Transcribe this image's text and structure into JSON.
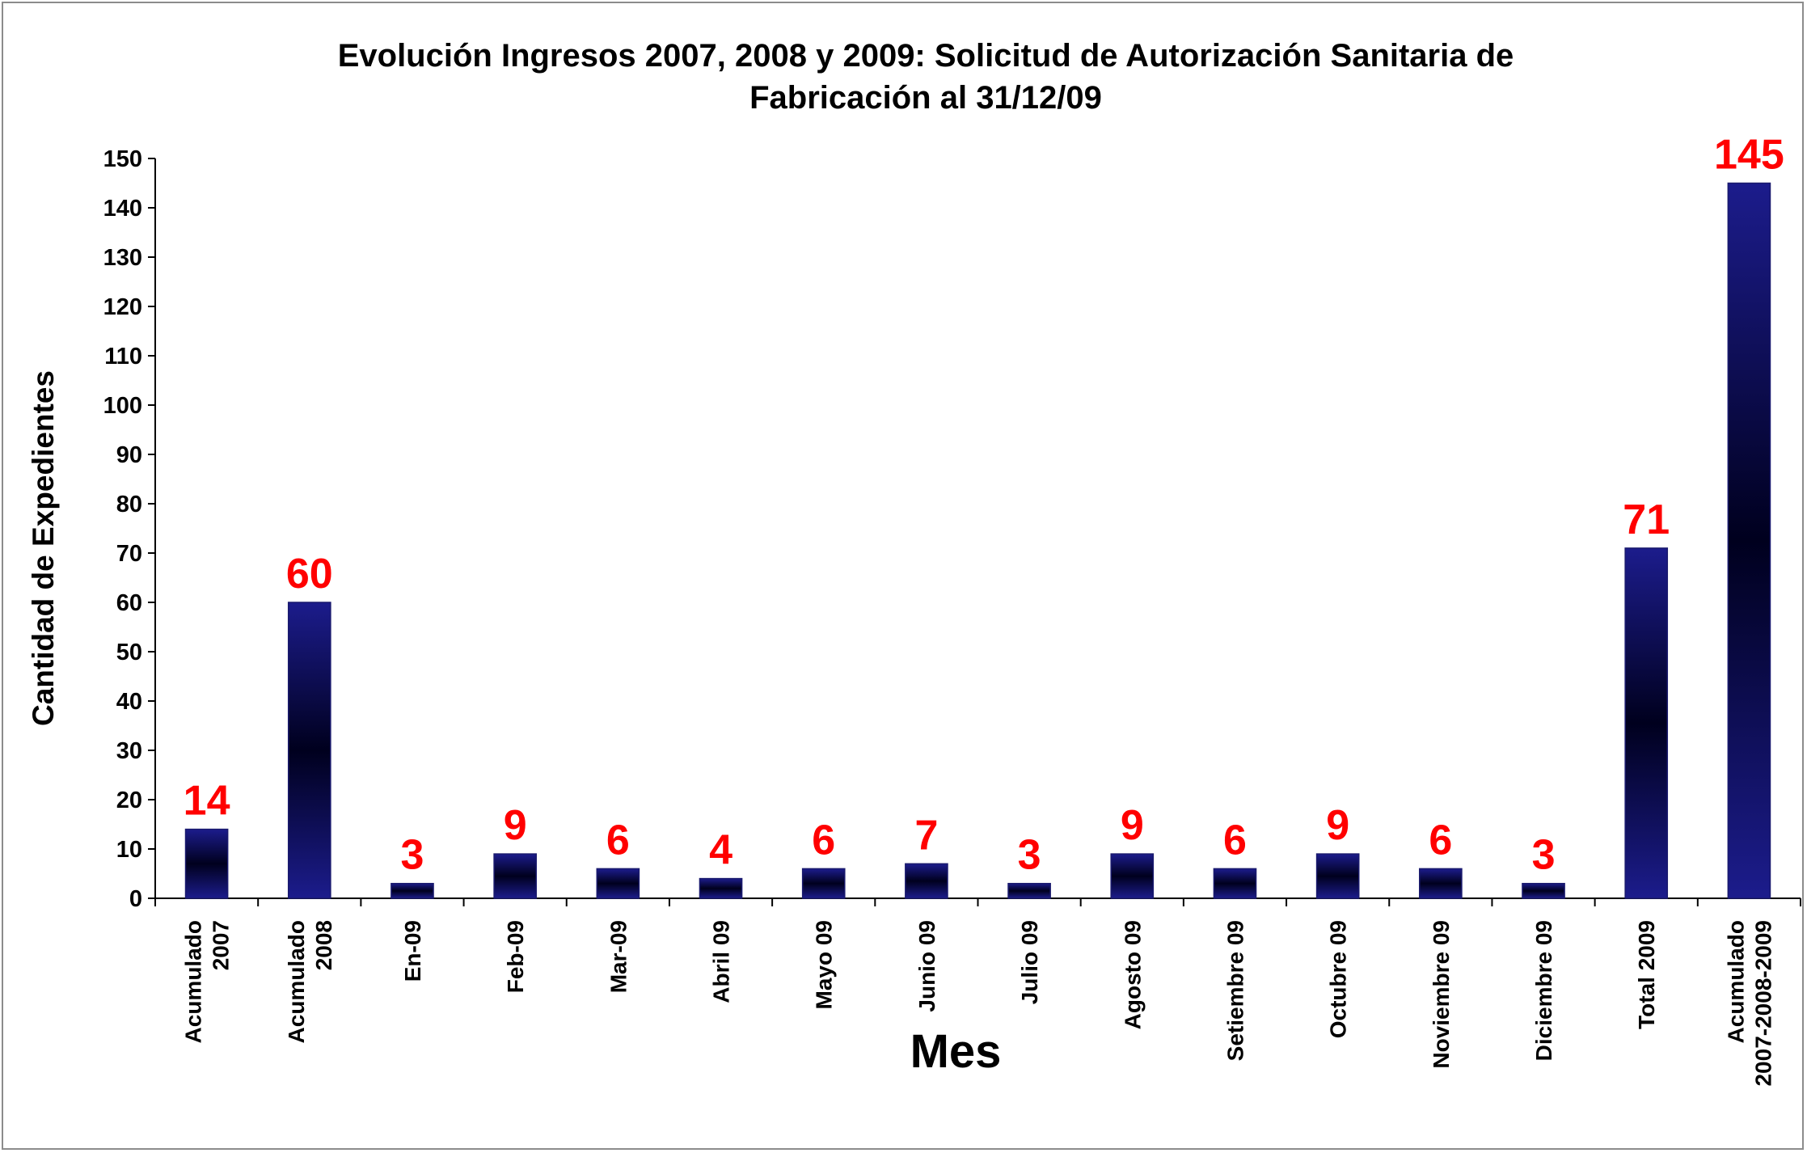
{
  "chart_data": {
    "type": "bar",
    "title_lines": [
      "Evolución Ingresos 2007, 2008 y 2009: Solicitud de Autorización Sanitaria de",
      "Fabricación al 31/12/09"
    ],
    "xlabel": "Mes",
    "ylabel": "Cantidad de Expedientes",
    "ylim": [
      0,
      150
    ],
    "yticks": [
      0,
      10,
      20,
      30,
      40,
      50,
      60,
      70,
      80,
      90,
      100,
      110,
      120,
      130,
      140,
      150
    ],
    "categories": [
      [
        "Acumulado",
        "2007"
      ],
      [
        "Acumulado",
        "2008"
      ],
      [
        "En-09"
      ],
      [
        "Feb-09"
      ],
      [
        "Mar-09"
      ],
      [
        "Abril 09"
      ],
      [
        "Mayo 09"
      ],
      [
        "Junio 09"
      ],
      [
        "Julio 09"
      ],
      [
        "Agosto 09"
      ],
      [
        "Setiembre 09"
      ],
      [
        "Octubre 09"
      ],
      [
        "Noviembre 09"
      ],
      [
        "Diciembre 09"
      ],
      [
        "Total 2009"
      ],
      [
        "Acumulado",
        "2007-2008-2009"
      ]
    ],
    "values": [
      14,
      60,
      3,
      9,
      6,
      4,
      6,
      7,
      3,
      9,
      6,
      9,
      6,
      3,
      71,
      145
    ],
    "data_labels": [
      "14",
      "60",
      "3",
      "9",
      "6",
      "4",
      "6",
      "7",
      "3",
      "9",
      "6",
      "9",
      "6",
      "3",
      "71",
      "145"
    ],
    "grid": false,
    "legend": "none",
    "colors": {
      "bar_edge": "#1a1a6e",
      "bar_light": "#1c1c8c",
      "bar_dark": "#00001e",
      "data_label": "#ff0000",
      "axis": "#000000",
      "frame_border": "#8c8c8c"
    }
  }
}
